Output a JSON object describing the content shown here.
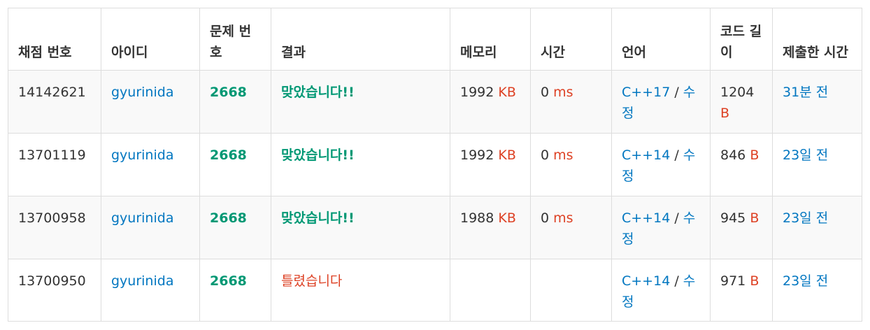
{
  "headers": {
    "id": "채점 번호",
    "user": "아이디",
    "problem": "문제 번호",
    "result": "결과",
    "memory": "메모리",
    "time": "시간",
    "language": "언어",
    "code_length": "코드 길이",
    "submitted": "제출한 시간"
  },
  "rows": [
    {
      "id": "14142621",
      "user": "gyurinida",
      "problem": "2668",
      "result": "맞았습니다!!",
      "result_status": "accepted",
      "memory": "1992",
      "memory_unit": "KB",
      "time": "0",
      "time_unit": "ms",
      "language": "C++17",
      "edit": "수정",
      "code_length": "1204",
      "code_unit": "B",
      "submitted": "31분 전"
    },
    {
      "id": "13701119",
      "user": "gyurinida",
      "problem": "2668",
      "result": "맞았습니다!!",
      "result_status": "accepted",
      "memory": "1992",
      "memory_unit": "KB",
      "time": "0",
      "time_unit": "ms",
      "language": "C++14",
      "edit": "수정",
      "code_length": "846",
      "code_unit": "B",
      "submitted": "23일 전"
    },
    {
      "id": "13700958",
      "user": "gyurinida",
      "problem": "2668",
      "result": "맞았습니다!!",
      "result_status": "accepted",
      "memory": "1988",
      "memory_unit": "KB",
      "time": "0",
      "time_unit": "ms",
      "language": "C++14",
      "edit": "수정",
      "code_length": "945",
      "code_unit": "B",
      "submitted": "23일 전"
    },
    {
      "id": "13700950",
      "user": "gyurinida",
      "problem": "2668",
      "result": "틀렸습니다",
      "result_status": "wrong",
      "memory": "",
      "memory_unit": "",
      "time": "",
      "time_unit": "",
      "language": "C++14",
      "edit": "수정",
      "code_length": "971",
      "code_unit": "B",
      "submitted": "23일 전"
    }
  ],
  "colors": {
    "link": "#0076c0",
    "accepted": "#009874",
    "wrong": "#dd4124",
    "unit": "#dd4124",
    "border": "#dddddd",
    "stripe": "#f9f9f9"
  }
}
